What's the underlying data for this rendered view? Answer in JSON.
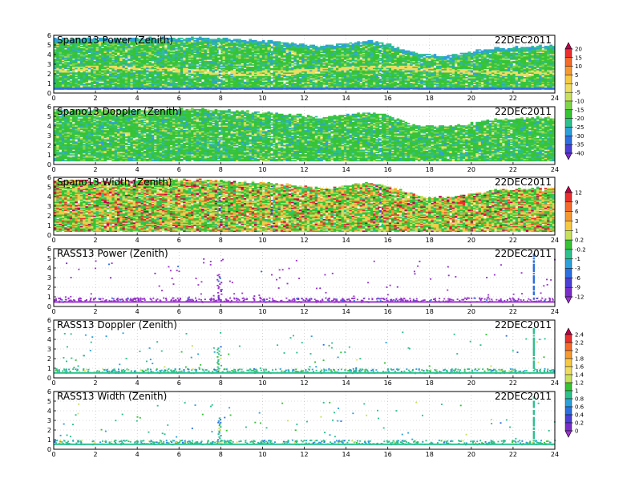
{
  "chart_data": [
    {
      "type": "heatmap",
      "title": "Spano13 Power (Zenith)",
      "date": "22DEC2011",
      "xlim": [
        0,
        24
      ],
      "ylim": [
        0,
        6
      ],
      "xticks": [
        "0",
        "2",
        "4",
        "6",
        "8",
        "10",
        "12",
        "14",
        "16",
        "18",
        "20",
        "22",
        "24"
      ],
      "yticks": [
        "0",
        "1",
        "2",
        "3",
        "4",
        "5",
        "6"
      ],
      "colorbar": "cb1",
      "pattern": "dense",
      "color_base": "green",
      "top_height": [
        [
          0,
          5.6
        ],
        [
          3,
          5.6
        ],
        [
          7,
          5.7
        ],
        [
          9,
          5.5
        ],
        [
          11,
          5.2
        ],
        [
          13,
          4.8
        ],
        [
          15,
          5.4
        ],
        [
          16,
          5.0
        ],
        [
          17.5,
          3.9
        ],
        [
          19,
          3.9
        ],
        [
          21,
          4.6
        ],
        [
          24,
          4.9
        ]
      ]
    },
    {
      "type": "heatmap",
      "title": "Spano13 Doppler (Zenith)",
      "date": "22DEC2011",
      "xlim": [
        0,
        24
      ],
      "ylim": [
        0,
        6
      ],
      "xticks": [
        "0",
        "2",
        "4",
        "6",
        "8",
        "10",
        "12",
        "14",
        "16",
        "18",
        "20",
        "22",
        "24"
      ],
      "yticks": [
        "0",
        "1",
        "2",
        "3",
        "4",
        "5",
        "6"
      ],
      "colorbar": "cb1",
      "pattern": "dense",
      "color_base": "green",
      "top_height": [
        [
          0,
          5.6
        ],
        [
          3,
          5.6
        ],
        [
          7,
          5.7
        ],
        [
          9,
          5.5
        ],
        [
          11,
          5.2
        ],
        [
          13,
          4.8
        ],
        [
          15,
          5.4
        ],
        [
          16,
          5.0
        ],
        [
          17.5,
          3.9
        ],
        [
          19,
          3.9
        ],
        [
          21,
          4.6
        ],
        [
          24,
          4.9
        ]
      ]
    },
    {
      "type": "heatmap",
      "title": "Spano13 Width (Zenith)",
      "date": "22DEC2011",
      "xlim": [
        0,
        24
      ],
      "ylim": [
        0,
        6
      ],
      "xticks": [
        "0",
        "2",
        "4",
        "6",
        "8",
        "10",
        "12",
        "14",
        "16",
        "18",
        "20",
        "22",
        "24"
      ],
      "yticks": [
        "0",
        "1",
        "2",
        "3",
        "4",
        "5",
        "6"
      ],
      "colorbar": "cb2",
      "pattern": "dense",
      "color_base": "mixed",
      "top_height": [
        [
          0,
          5.6
        ],
        [
          3,
          5.6
        ],
        [
          7,
          5.7
        ],
        [
          9,
          5.5
        ],
        [
          11,
          5.2
        ],
        [
          13,
          4.8
        ],
        [
          15,
          5.4
        ],
        [
          16,
          5.0
        ],
        [
          17.5,
          3.9
        ],
        [
          19,
          3.9
        ],
        [
          21,
          4.6
        ],
        [
          24,
          4.9
        ]
      ]
    },
    {
      "type": "heatmap",
      "title": "RASS13 Power (Zenith)",
      "date": "22DEC2011",
      "xlim": [
        0,
        24
      ],
      "ylim": [
        0,
        6
      ],
      "xticks": [
        "0",
        "2",
        "4",
        "6",
        "8",
        "10",
        "12",
        "14",
        "16",
        "18",
        "20",
        "22",
        "24"
      ],
      "yticks": [
        "0",
        "1",
        "2",
        "3",
        "4",
        "5",
        "6"
      ],
      "colorbar": "cb2",
      "pattern": "sparse",
      "color_base": "purple"
    },
    {
      "type": "heatmap",
      "title": "RASS13 Doppler (Zenith)",
      "date": "22DEC2011",
      "xlim": [
        0,
        24
      ],
      "ylim": [
        0,
        6
      ],
      "xticks": [
        "0",
        "2",
        "4",
        "6",
        "8",
        "10",
        "12",
        "14",
        "16",
        "18",
        "20",
        "22",
        "24"
      ],
      "yticks": [
        "0",
        "1",
        "2",
        "3",
        "4",
        "5",
        "6"
      ],
      "colorbar": "cb3",
      "pattern": "sparse",
      "color_base": "green"
    },
    {
      "type": "heatmap",
      "title": "RASS13 Width (Zenith)",
      "date": "22DEC2011",
      "xlim": [
        0,
        24
      ],
      "ylim": [
        0,
        6
      ],
      "xticks": [
        "0",
        "2",
        "4",
        "6",
        "8",
        "10",
        "12",
        "14",
        "16",
        "18",
        "20",
        "22",
        "24"
      ],
      "yticks": [
        "0",
        "1",
        "2",
        "3",
        "4",
        "5",
        "6"
      ],
      "colorbar": "cb3",
      "pattern": "sparse",
      "color_base": "green"
    }
  ],
  "colorbars": [
    {
      "id": "cb1",
      "labels": [
        "20",
        "15",
        "10",
        "5",
        "0",
        "-5",
        "-10",
        "-15",
        "-20",
        "-25",
        "-30",
        "-35",
        "-40"
      ],
      "colors": [
        "#c0004e",
        "#e8302f",
        "#f46b2b",
        "#f59a33",
        "#f6c944",
        "#eedc62",
        "#c7e05e",
        "#7ed54a",
        "#36c335",
        "#2ec08d",
        "#2da0d9",
        "#2c6fe0",
        "#4b3fd6",
        "#7a2ec8"
      ]
    },
    {
      "id": "cb2",
      "labels": [
        "12",
        "9",
        "6",
        "3",
        "1",
        "0.2",
        "-0.2",
        "-1",
        "-3",
        "-6",
        "-9",
        "-12"
      ],
      "colors": [
        "#c0004e",
        "#e8302f",
        "#f46b2b",
        "#f59a33",
        "#f6c944",
        "#c7e05e",
        "#36c335",
        "#2ec08d",
        "#2da0d9",
        "#2c6fe0",
        "#4b3fd6",
        "#7a2ec8",
        "#9a35c9"
      ]
    },
    {
      "id": "cb3",
      "labels": [
        "2.4",
        "2.2",
        "2",
        "1.8",
        "1.6",
        "1.4",
        "1.2",
        "1",
        "0.8",
        "0.6",
        "0.4",
        "0.2",
        "0"
      ],
      "colors": [
        "#c0004e",
        "#e8302f",
        "#f46b2b",
        "#f59a33",
        "#f6c944",
        "#eedc62",
        "#c7e05e",
        "#36c335",
        "#2ec08d",
        "#2da0d9",
        "#2c6fe0",
        "#4b3fd6",
        "#7a2ec8",
        "#9a35c9"
      ]
    }
  ]
}
